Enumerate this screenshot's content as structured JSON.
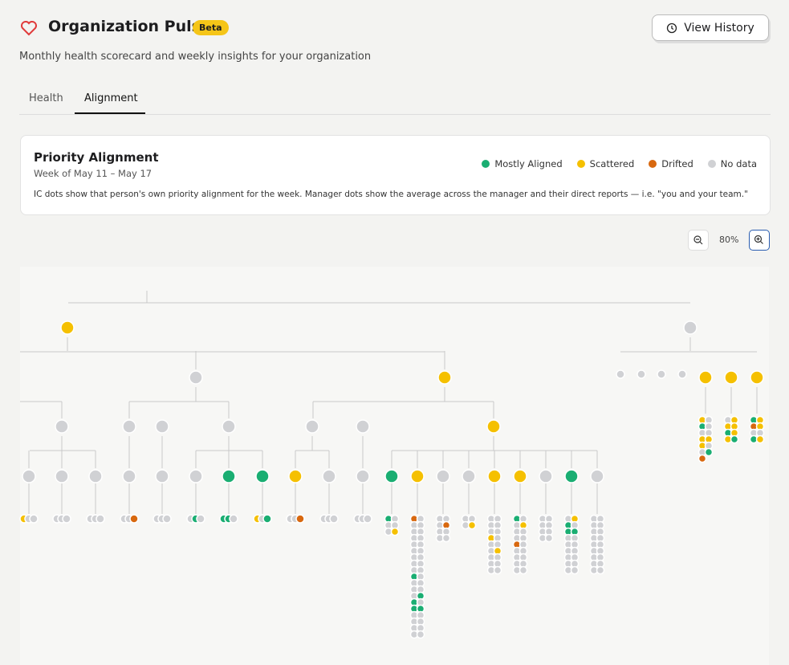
{
  "header": {
    "title": "Organization Pulse",
    "badge": "Beta",
    "subtitle": "Monthly health scorecard and weekly insights for your organization",
    "button": "View History"
  },
  "tabs": [
    "Health",
    "Alignment"
  ],
  "card": {
    "title": "Priority Alignment",
    "week": "Week of May 11 – May 17",
    "description": "IC dots show that person's own priority alignment for the week. Manager dots show the average across the manager and their direct reports — i.e. \"you and your team.\"",
    "legend": [
      {
        "label": "Mostly Aligned",
        "color": "#1aae72"
      },
      {
        "label": "Scattered",
        "color": "#f5c000"
      },
      {
        "label": "Drifted",
        "color": "#d8680f"
      },
      {
        "label": "No data",
        "color": "#d0d1d4"
      }
    ]
  },
  "zoom": {
    "label": "80%"
  }
}
